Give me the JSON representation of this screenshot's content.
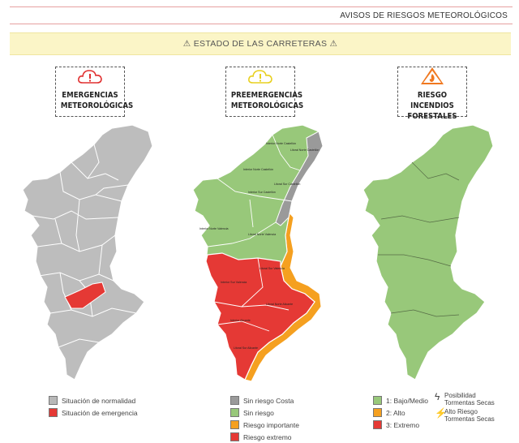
{
  "header": {
    "title": "AVISOS DE RIESGOS METEOROLÓGICOS"
  },
  "banner": {
    "text": "⚠ ESTADO DE LAS CARRETERAS ⚠"
  },
  "cards": [
    {
      "title_line1": "EMERGENCIAS",
      "title_line2": "METEOROLÓGICAS",
      "icon": "cloud-alert-icon",
      "icon_color": "#e03030"
    },
    {
      "title_line1": "PREEMERGENCIAS",
      "title_line2": "METEOROLÓGICAS",
      "icon": "cloud-alert-icon",
      "icon_color": "#e8d020"
    },
    {
      "title_line1": "RIESGO INCENDIOS",
      "title_line2": "FORESTALES",
      "icon": "fire-warning-icon",
      "icon_color": "#f07820"
    }
  ],
  "map_labels": {
    "interior_norte_castellon": "Interior Norte Castellón",
    "litoral_norte_castellon": "Litoral Norte Castellón",
    "litoral_sur_castellon": "Litoral Sur Castellón",
    "interior_sur_castellon": "Interior Sur Castellón",
    "interior_norte_valencia": "Interior Norte Valencia",
    "litoral_norte_valencia": "Litoral Norte Valencia",
    "litoral_sur_valencia": "Litoral Sur Valencia",
    "interior_sur_valencia": "Interior Sur Valencia",
    "litoral_norte_alicante": "Litoral Norte Alicante",
    "interior_alicante": "Interior Alicante",
    "litoral_sur_alicante": "Litoral Sur Alicante"
  },
  "legend_emergencias": [
    {
      "label": "Situación de normalidad",
      "color": "#b8b8b8"
    },
    {
      "label": "Situación de emergencia",
      "color": "#e53935"
    }
  ],
  "legend_preemergencias": [
    {
      "label": "Sin riesgo Costa",
      "color": "#9a9a9a"
    },
    {
      "label": "Sin riesgo",
      "color": "#98c87a"
    },
    {
      "label": "Riesgo importante",
      "color": "#f5a020"
    },
    {
      "label": "Riesgo extremo",
      "color": "#e53935"
    }
  ],
  "legend_incendios": [
    {
      "label": "1: Bajo/Medio",
      "color": "#98c87a"
    },
    {
      "label": "2: Alto",
      "color": "#f5a020"
    },
    {
      "label": "3: Extremo",
      "color": "#e53935"
    }
  ],
  "legend_tormentas": [
    {
      "label_line1": "Posibilidad",
      "label_line2": "Tormentas Secas",
      "icon": "lightning-outline-icon"
    },
    {
      "label_line1": "Alto Riesgo",
      "label_line2": "Tormentas Secas",
      "icon": "lightning-filled-icon"
    }
  ]
}
